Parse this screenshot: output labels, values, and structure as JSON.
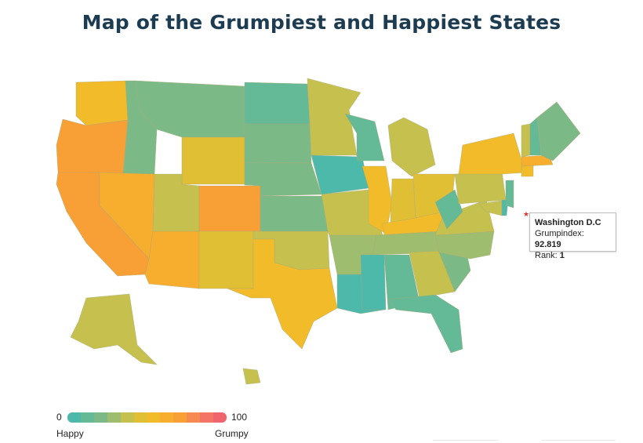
{
  "title": "Map of the Grumpiest and Happiest States",
  "colors": {
    "c1": "#4cb9ab",
    "c2": "#64b996",
    "c3": "#7bba86",
    "c4": "#9fbd6e",
    "c5": "#c6c14e",
    "c6": "#e0bf35",
    "c7": "#f2bb29",
    "c8": "#f7ad2d",
    "c9": "#f89f36",
    "c10": "#f78a50",
    "c11": "#f47565",
    "c12": "#f0656d"
  },
  "tooltip": {
    "name": "Washington D.C",
    "grumpindex_label": "Grumpindex: ",
    "grumpindex_value": "92.819",
    "rank_label": "Rank: ",
    "rank_value": "1"
  },
  "legend": {
    "min": "0",
    "max": "100",
    "low_label": "Happy",
    "high_label": "Grumpy",
    "colors": [
      "#4cb9ab",
      "#64b996",
      "#7bba86",
      "#9fbd6e",
      "#c6c14e",
      "#e0bf35",
      "#f2bb29",
      "#f7ad2d",
      "#f89f36",
      "#f78a50",
      "#f47565",
      "#f0656d"
    ]
  }
}
